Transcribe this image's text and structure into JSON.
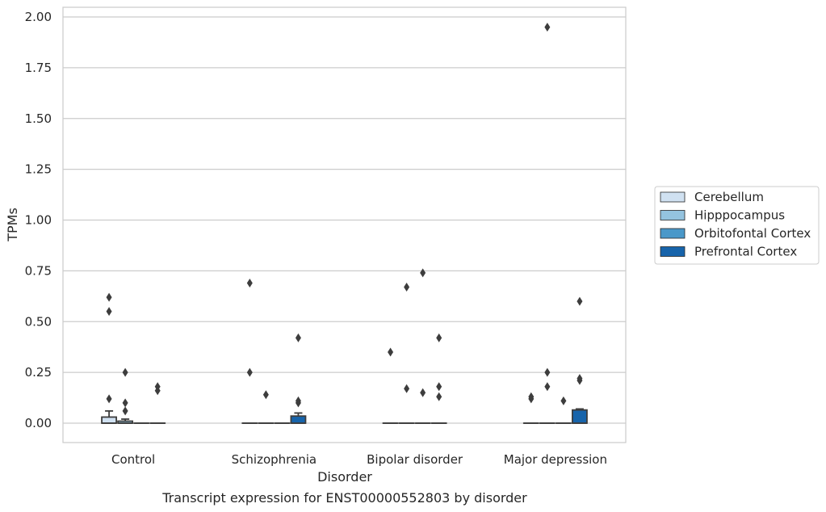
{
  "chart_data": {
    "type": "box",
    "title": "",
    "caption": "Transcript expression for ENST00000552803 by disorder",
    "xlabel": "Disorder",
    "ylabel": "TPMs",
    "ylim": [
      -0.1,
      2.04
    ],
    "yticks": [
      "0.00",
      "0.25",
      "0.50",
      "0.75",
      "1.00",
      "1.25",
      "1.50",
      "1.75",
      "2.00"
    ],
    "ytick_values": [
      0,
      0.25,
      0.5,
      0.75,
      1.0,
      1.25,
      1.5,
      1.75,
      2.0
    ],
    "grid": true,
    "legend_position": "right",
    "categories": [
      "Control",
      "Schizophrenia",
      "Bipolar disorder",
      "Major depression"
    ],
    "series": [
      {
        "name": "Cerebellum",
        "color": "#d0e1f1",
        "boxes": [
          {
            "q1": 0,
            "median": 0,
            "q3": 0.03,
            "whisker_low": 0,
            "whisker_high": 0.06,
            "outliers": [
              0.12,
              0.55,
              0.62
            ]
          },
          {
            "q1": 0,
            "median": 0,
            "q3": 0,
            "whisker_low": 0,
            "whisker_high": 0,
            "outliers": [
              0.25,
              0.69
            ]
          },
          {
            "q1": 0,
            "median": 0,
            "q3": 0,
            "whisker_low": 0,
            "whisker_high": 0,
            "outliers": [
              0.35
            ]
          },
          {
            "q1": 0,
            "median": 0,
            "q3": 0,
            "whisker_low": 0,
            "whisker_high": 0,
            "outliers": [
              0.12,
              0.13
            ]
          }
        ]
      },
      {
        "name": "Hipppocampus",
        "color": "#94c3df",
        "boxes": [
          {
            "q1": 0,
            "median": 0,
            "q3": 0.01,
            "whisker_low": 0,
            "whisker_high": 0.02,
            "outliers": [
              0.06,
              0.1,
              0.25
            ]
          },
          {
            "q1": 0,
            "median": 0,
            "q3": 0,
            "whisker_low": 0,
            "whisker_high": 0,
            "outliers": [
              0.14
            ]
          },
          {
            "q1": 0,
            "median": 0,
            "q3": 0,
            "whisker_low": 0,
            "whisker_high": 0,
            "outliers": [
              0.17,
              0.67
            ]
          },
          {
            "q1": 0,
            "median": 0,
            "q3": 0,
            "whisker_low": 0,
            "whisker_high": 0,
            "outliers": [
              0.18,
              0.25,
              1.95
            ]
          }
        ]
      },
      {
        "name": "Orbitofontal Cortex",
        "color": "#4a98c9",
        "boxes": [
          {
            "q1": 0,
            "median": 0,
            "q3": 0,
            "whisker_low": 0,
            "whisker_high": 0,
            "outliers": []
          },
          {
            "q1": 0,
            "median": 0,
            "q3": 0,
            "whisker_low": 0,
            "whisker_high": 0,
            "outliers": []
          },
          {
            "q1": 0,
            "median": 0,
            "q3": 0,
            "whisker_low": 0,
            "whisker_high": 0,
            "outliers": [
              0.15,
              0.74
            ]
          },
          {
            "q1": 0,
            "median": 0,
            "q3": 0,
            "whisker_low": 0,
            "whisker_high": 0,
            "outliers": [
              0.11
            ]
          }
        ]
      },
      {
        "name": "Prefrontal Cortex",
        "color": "#1764ab",
        "boxes": [
          {
            "q1": 0,
            "median": 0,
            "q3": 0,
            "whisker_low": 0,
            "whisker_high": 0,
            "outliers": [
              0.16,
              0.18
            ]
          },
          {
            "q1": 0,
            "median": 0,
            "q3": 0.035,
            "whisker_low": 0,
            "whisker_high": 0.05,
            "outliers": [
              0.1,
              0.11,
              0.42
            ]
          },
          {
            "q1": 0,
            "median": 0,
            "q3": 0,
            "whisker_low": 0,
            "whisker_high": 0,
            "outliers": [
              0.13,
              0.18,
              0.42
            ]
          },
          {
            "q1": 0,
            "median": 0,
            "q3": 0.065,
            "whisker_low": 0,
            "whisker_high": 0.07,
            "outliers": [
              0.21,
              0.22,
              0.6
            ]
          }
        ]
      }
    ]
  }
}
